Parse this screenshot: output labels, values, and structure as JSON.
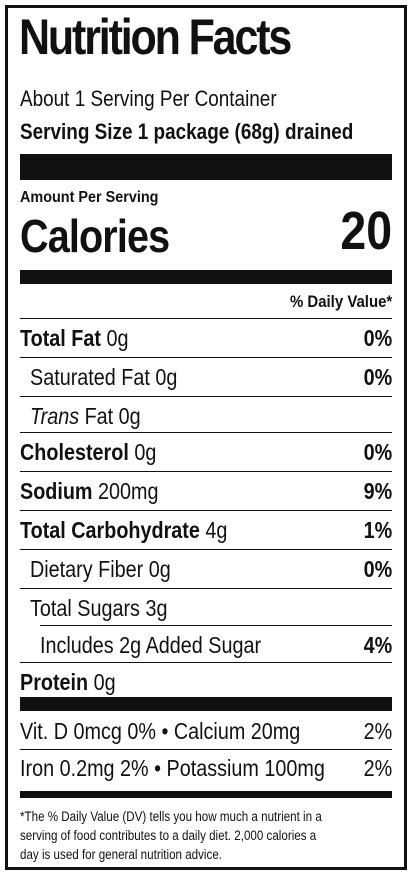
{
  "label": {
    "title": "Nutrition Facts",
    "servings_per_container": "About 1 Serving Per Container",
    "serving_size": "Serving Size 1 package (68g) drained",
    "amount_per_serving": "Amount Per Serving",
    "calories_label": "Calories",
    "calories_value": "20",
    "daily_value_header": "% Daily Value*"
  },
  "nutrients": [
    {
      "name": "Total Fat",
      "amount": "0g",
      "dv": "0%"
    },
    {
      "name": "Saturated Fat",
      "amount": "0g",
      "dv": "0%"
    },
    {
      "name_italic": "Trans",
      "name_rest": "Fat",
      "amount": "0g",
      "dv": ""
    },
    {
      "name": "Cholesterol",
      "amount": "0g",
      "dv": "0%"
    },
    {
      "name": "Sodium",
      "amount": "200mg",
      "dv": "9%"
    },
    {
      "name": "Total Carbohydrate",
      "amount": "4g",
      "dv": "1%"
    },
    {
      "name": "Dietary Fiber",
      "amount": "0g",
      "dv": "0%"
    },
    {
      "name": "Total Sugars",
      "amount": "3g",
      "dv": ""
    },
    {
      "name": "Includes 2g Added Sugar",
      "amount": "",
      "dv": "4%"
    },
    {
      "name": "Protein",
      "amount": "0g",
      "dv": ""
    }
  ],
  "micros": [
    {
      "left": "Vit. D 0mcg  0% • Calcium 20mg",
      "right": "2%"
    },
    {
      "left": "Iron 0.2mg  2% • Potassium 100mg",
      "right": "2%"
    }
  ],
  "footnote": [
    "*The % Daily Value (DV) tells you how much a nutrient in a",
    "serving of food contributes to a daily diet. 2,000 calories a",
    "day is used for general nutrition advice."
  ]
}
